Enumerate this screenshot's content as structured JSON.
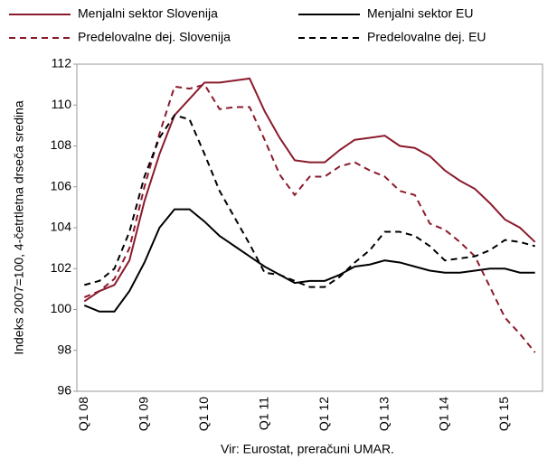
{
  "chart_data": {
    "type": "line",
    "y_axis_label": "Indeks 2007=100, 4-četrtletna drseča sredina",
    "source": "Vir: Eurostat, preračuni UMAR.",
    "categories": [
      "Q1 08",
      null,
      null,
      null,
      "Q1 09",
      null,
      null,
      null,
      "Q1 10",
      null,
      null,
      null,
      "Q1 11",
      null,
      null,
      null,
      "Q1 12",
      null,
      null,
      null,
      "Q1 13",
      null,
      null,
      null,
      "Q1 14",
      null,
      null,
      null,
      "Q1 15",
      null,
      null
    ],
    "series": [
      {
        "name": "Menjalni sektor Slovenija",
        "color": "#8b1a2b",
        "dash": false,
        "values": [
          100.4,
          100.9,
          101.2,
          102.4,
          105.3,
          107.6,
          109.5,
          110.3,
          111.1,
          111.1,
          111.2,
          111.3,
          109.7,
          108.4,
          107.3,
          107.2,
          107.2,
          107.8,
          108.3,
          108.4,
          108.5,
          108.0,
          107.9,
          107.5,
          106.8,
          106.3,
          105.9,
          105.2,
          104.4,
          104.0,
          103.3
        ]
      },
      {
        "name": "Menjalni sektor EU",
        "color": "#000000",
        "dash": false,
        "values": [
          100.2,
          99.9,
          99.9,
          100.9,
          102.3,
          104.0,
          104.9,
          104.9,
          104.3,
          103.6,
          103.1,
          102.6,
          102.1,
          101.7,
          101.3,
          101.4,
          101.4,
          101.7,
          102.1,
          102.2,
          102.4,
          102.3,
          102.1,
          101.9,
          101.8,
          101.8,
          101.9,
          102.0,
          102.0,
          101.8,
          101.8
        ]
      },
      {
        "name": "Predelovalne dej. Slovenija",
        "color": "#8b1a2b",
        "dash": true,
        "values": [
          100.6,
          100.9,
          101.5,
          103.0,
          106.0,
          108.6,
          110.9,
          110.8,
          111.0,
          109.8,
          109.9,
          109.9,
          108.3,
          106.6,
          105.6,
          106.5,
          106.5,
          107.0,
          107.2,
          106.8,
          106.5,
          105.8,
          105.6,
          104.2,
          103.9,
          103.3,
          102.6,
          101.1,
          99.6,
          98.8,
          97.9
        ]
      },
      {
        "name": "Predelovalne dej. EU",
        "color": "#000000",
        "dash": true,
        "values": [
          101.2,
          101.4,
          102.0,
          103.8,
          106.5,
          108.4,
          109.5,
          109.3,
          107.6,
          105.8,
          104.5,
          103.2,
          101.8,
          101.7,
          101.4,
          101.1,
          101.1,
          101.6,
          102.3,
          102.9,
          103.8,
          103.8,
          103.6,
          103.1,
          102.4,
          102.5,
          102.6,
          102.9,
          103.4,
          103.3,
          103.1
        ]
      }
    ],
    "ylim": [
      96,
      112
    ],
    "yticks": [
      96,
      98,
      100,
      102,
      104,
      106,
      108,
      110,
      112
    ],
    "grid": false,
    "legend": "top"
  }
}
